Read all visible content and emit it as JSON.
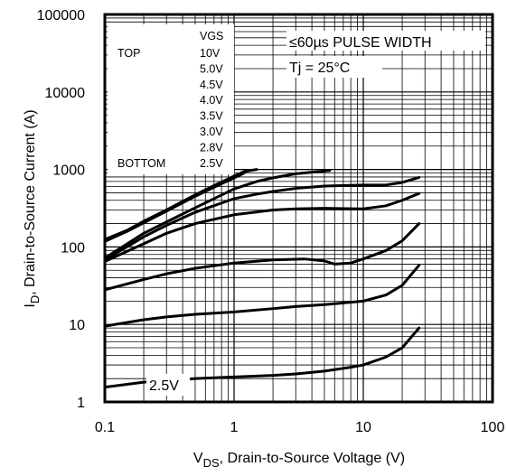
{
  "chart_data": {
    "type": "line",
    "xlabel": {
      "prefix": "V",
      "sub": "DS",
      "rest": ", Drain-to-Source Voltage (V)"
    },
    "ylabel": {
      "prefix": "I",
      "sub": "D",
      "rest": ", Drain-to-Source Current (A)"
    },
    "x_scale": "log",
    "y_scale": "log",
    "xlim": [
      0.1,
      100
    ],
    "ylim": [
      1,
      100000
    ],
    "x_ticks": [
      0.1,
      1,
      10,
      100
    ],
    "x_tick_labels": [
      "0.1",
      "1",
      "10",
      "100"
    ],
    "y_ticks": [
      1,
      10,
      100,
      1000,
      10000,
      100000
    ],
    "y_tick_labels": [
      "1",
      "10",
      "100",
      "1000",
      "10000",
      "100000"
    ],
    "grid": true,
    "legend": {
      "header": "VGS",
      "top_label": "TOP",
      "bottom_label": "BOTTOM",
      "entries": [
        "10V",
        "5.0V",
        "4.5V",
        "4.0V",
        "3.5V",
        "3.0V",
        "2.8V",
        "2.5V"
      ]
    },
    "annotations": {
      "pulse_width": "≤60µs PULSE WIDTH",
      "temperature": "Tj = 25°C",
      "curve_label": "2.5V"
    },
    "series": [
      {
        "x": [
          0.1,
          0.15,
          0.2,
          0.3,
          0.5,
          0.7,
          1.0,
          1.2,
          1.5
        ],
        "y": [
          125,
          165,
          215,
          300,
          470,
          620,
          820,
          940,
          1000
        ]
      },
      {
        "x": [
          0.1,
          0.15,
          0.2,
          0.3,
          0.5,
          0.7,
          1.0,
          1.2
        ],
        "y": [
          118,
          160,
          205,
          290,
          450,
          590,
          780,
          900
        ]
      },
      {
        "x": [
          0.1,
          0.2,
          0.3,
          0.5,
          0.7,
          1.0,
          1.5,
          2,
          3,
          5.5
        ],
        "y": [
          72,
          150,
          210,
          320,
          420,
          560,
          700,
          780,
          880,
          970
        ]
      },
      {
        "x": [
          0.1,
          0.2,
          0.3,
          0.5,
          1.0,
          1.5,
          2,
          3,
          5,
          10,
          15,
          20,
          27
        ],
        "y": [
          68,
          135,
          190,
          280,
          420,
          480,
          520,
          570,
          610,
          630,
          630,
          680,
          790
        ]
      },
      {
        "x": [
          0.1,
          0.2,
          0.3,
          0.5,
          1.0,
          2,
          3,
          5,
          10,
          15,
          20,
          27
        ],
        "y": [
          65,
          110,
          150,
          200,
          260,
          300,
          310,
          315,
          310,
          340,
          400,
          490
        ]
      },
      {
        "x": [
          0.1,
          0.2,
          0.3,
          0.5,
          1.0,
          2,
          3.5,
          5,
          6,
          8,
          10,
          15,
          20,
          27
        ],
        "y": [
          28,
          38,
          45,
          53,
          62,
          68,
          70,
          66,
          60,
          62,
          70,
          90,
          120,
          200
        ]
      },
      {
        "x": [
          0.1,
          0.2,
          0.3,
          0.5,
          1.0,
          2,
          3,
          5,
          10,
          15,
          20,
          27
        ],
        "y": [
          9.5,
          11.5,
          12.5,
          13.5,
          14.5,
          16,
          17,
          18,
          20,
          24,
          32,
          58
        ]
      },
      {
        "x": [
          0.1,
          0.2,
          0.3,
          0.5,
          1.0,
          2,
          3,
          5,
          8,
          10,
          15,
          20,
          27
        ],
        "y": [
          1.55,
          1.8,
          1.9,
          2.0,
          2.1,
          2.2,
          2.3,
          2.5,
          2.8,
          3.0,
          3.8,
          5.0,
          9.0
        ]
      }
    ]
  }
}
